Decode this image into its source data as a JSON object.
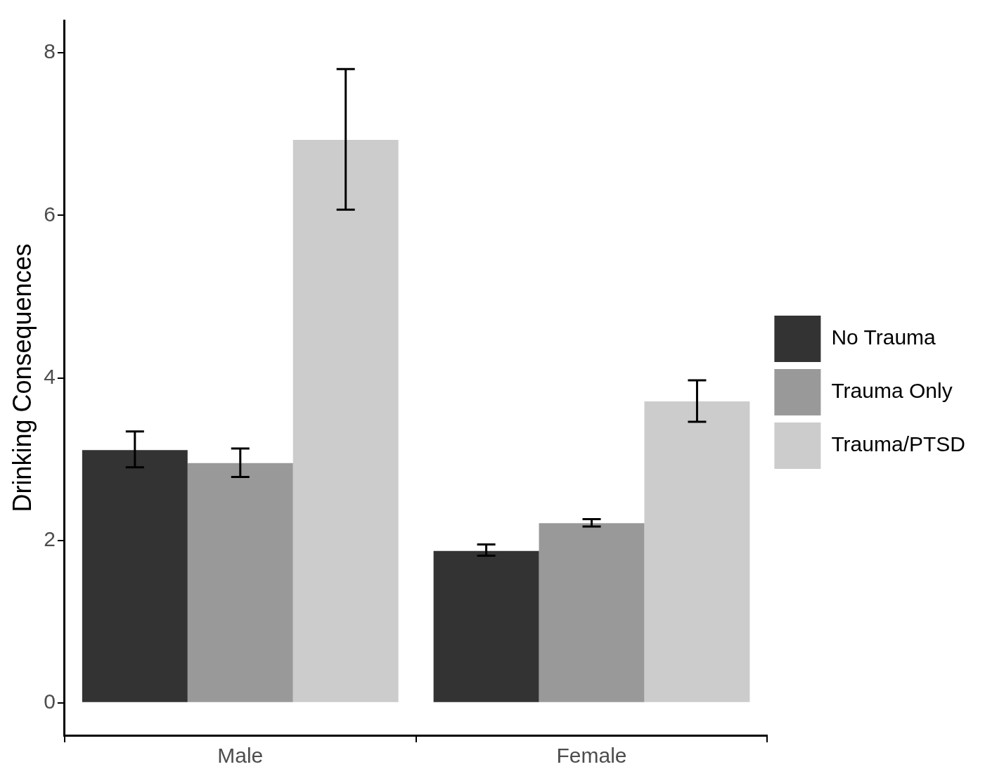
{
  "chart_data": {
    "type": "bar",
    "ylabel": "Drinking Consequences",
    "categories": [
      "Male",
      "Female"
    ],
    "series": [
      {
        "name": "No Trauma",
        "color": "#333333",
        "values": [
          3.11,
          1.87
        ],
        "errors": [
          [
            2.9,
            3.34
          ],
          [
            1.81,
            1.95
          ]
        ]
      },
      {
        "name": "Trauma Only",
        "color": "#999999",
        "values": [
          2.95,
          2.21
        ],
        "errors": [
          [
            2.78,
            3.13
          ],
          [
            2.17,
            2.26
          ]
        ]
      },
      {
        "name": "Trauma/PTSD",
        "color": "#cccccc",
        "values": [
          6.93,
          3.71
        ],
        "errors": [
          [
            6.07,
            7.8
          ],
          [
            3.46,
            3.97
          ]
        ]
      }
    ],
    "ylim": [
      -0.4,
      8.4
    ],
    "yticks": [
      0,
      2,
      4,
      6,
      8
    ],
    "grid": false,
    "legend": "right"
  }
}
